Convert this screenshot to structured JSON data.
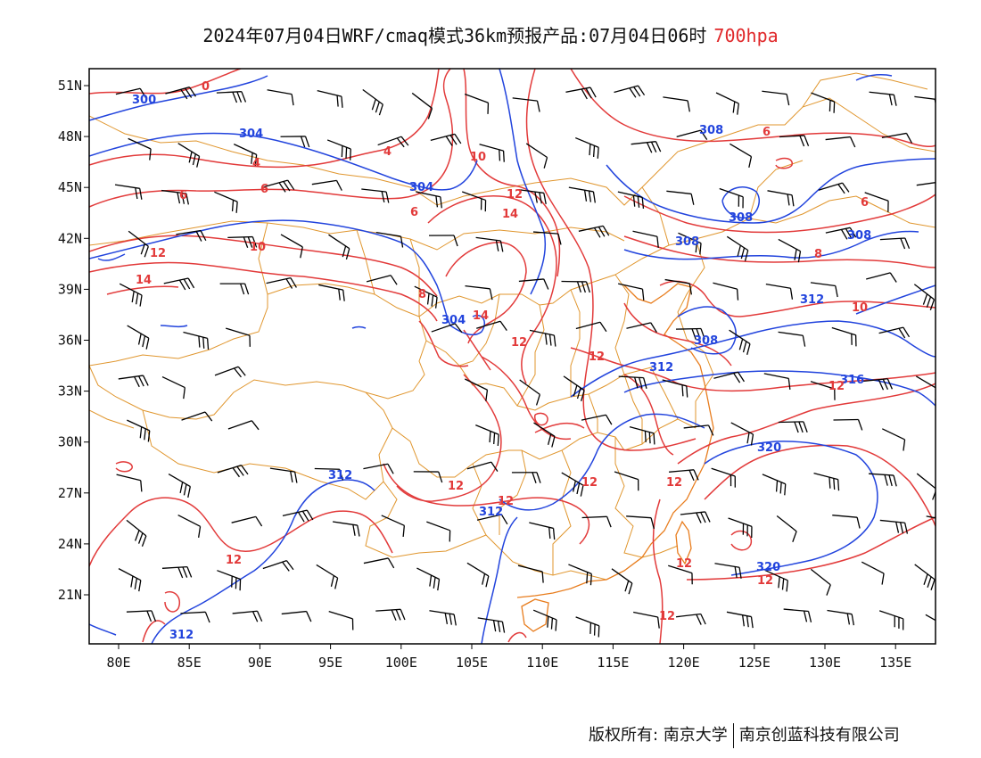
{
  "title": {
    "main": "2024年07月04日WRF/cmaq模式36km预报产品:07月04日06时",
    "level": "700hpa",
    "level_color": "#e0282a"
  },
  "axes": {
    "lon_labels": [
      "80E",
      "85E",
      "90E",
      "95E",
      "100E",
      "105E",
      "110E",
      "115E",
      "120E",
      "125E",
      "130E",
      "135E"
    ],
    "lat_labels": [
      "51N",
      "48N",
      "45N",
      "42N",
      "39N",
      "36N",
      "33N",
      "30N",
      "27N",
      "24N",
      "21N"
    ]
  },
  "colors": {
    "height_contour": "#2244dd",
    "temperature_contour": "#e23a3a",
    "boundary": "#e0962e",
    "wind_barb": "#000000",
    "coastline": "#e87d1e"
  },
  "height_contour_labels": [
    "300",
    "304",
    "304",
    "308",
    "308",
    "308",
    "308",
    "312",
    "312",
    "312",
    "312",
    "316",
    "320",
    "320",
    "312",
    "308",
    "304"
  ],
  "temperature_contour_labels": [
    "0",
    "4",
    "4",
    "6",
    "6",
    "6",
    "8",
    "10",
    "12",
    "14",
    "12",
    "14",
    "12",
    "12",
    "14",
    "12",
    "12",
    "12",
    "12",
    "12",
    "8",
    "6",
    "6",
    "10",
    "10",
    "12",
    "12",
    "12",
    "12"
  ],
  "legend_note": "",
  "footer": {
    "left": "版权所有: 南京大学",
    "right": "南京创蓝科技有限公司"
  }
}
